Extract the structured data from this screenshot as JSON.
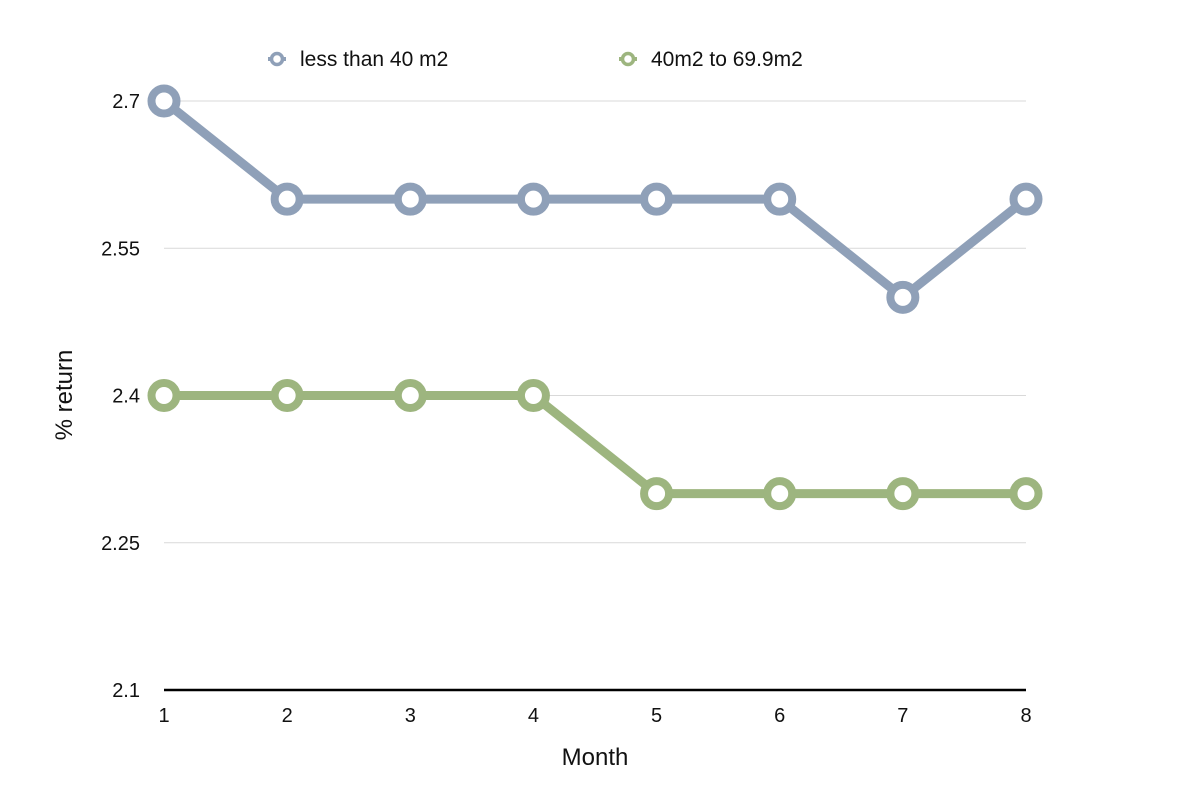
{
  "chart_data": {
    "type": "line",
    "categories": [
      "1",
      "2",
      "3",
      "4",
      "5",
      "6",
      "7",
      "8"
    ],
    "series": [
      {
        "name": "less than 40 m2",
        "color": "#8fa0b8",
        "values": [
          2.7,
          2.6,
          2.6,
          2.6,
          2.6,
          2.6,
          2.5,
          2.6
        ]
      },
      {
        "name": "40m2 to 69.9m2",
        "color": "#9db57f",
        "values": [
          2.4,
          2.4,
          2.4,
          2.4,
          2.3,
          2.3,
          2.3,
          2.3
        ]
      }
    ],
    "xlabel": "Month",
    "ylabel": "% return",
    "ylim": [
      2.1,
      2.7
    ],
    "yticks": [
      "2.1",
      "2.25",
      "2.4",
      "2.55",
      "2.7"
    ],
    "grid": true,
    "legend": "top"
  }
}
